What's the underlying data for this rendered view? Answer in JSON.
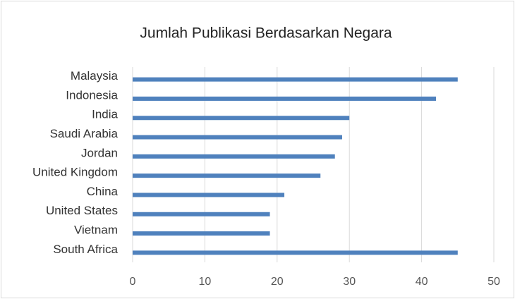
{
  "chart_data": {
    "type": "bar",
    "orientation": "horizontal",
    "title": "Jumlah Publikasi Berdasarkan Negara",
    "categories": [
      "Malaysia",
      "Indonesia",
      "India",
      "Saudi Arabia",
      "Jordan",
      "United Kingdom",
      "China",
      "United States",
      "Vietnam",
      "South Africa"
    ],
    "values": [
      45,
      42,
      30,
      29,
      28,
      26,
      21,
      19,
      19,
      45
    ],
    "color": "#4f81bd",
    "xlim": [
      0,
      50
    ],
    "xticks": [
      0,
      10,
      20,
      30,
      40,
      50
    ],
    "grid": true
  }
}
